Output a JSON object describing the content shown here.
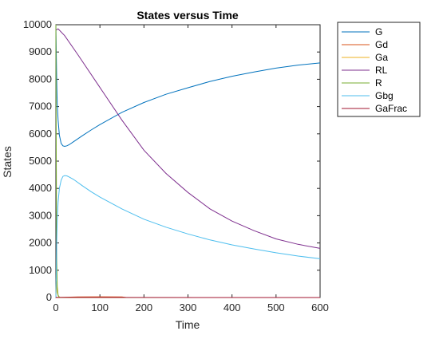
{
  "chart_data": {
    "type": "line",
    "title": "States versus Time",
    "xlabel": "Time",
    "ylabel": "States",
    "xlim": [
      0,
      600
    ],
    "ylim": [
      0,
      10000
    ],
    "xticks": [
      0,
      100,
      200,
      300,
      400,
      500,
      600
    ],
    "yticks": [
      0,
      1000,
      2000,
      3000,
      4000,
      5000,
      6000,
      7000,
      8000,
      9000,
      10000
    ],
    "grid": false,
    "legend_position": "outside-top-right",
    "series": [
      {
        "name": "G",
        "color": "#0072BD",
        "x": [
          0,
          1,
          2,
          3,
          5,
          8,
          12,
          16,
          20,
          25,
          30,
          40,
          60,
          80,
          100,
          150,
          200,
          250,
          300,
          350,
          400,
          450,
          500,
          550,
          600
        ],
        "y": [
          10000,
          8800,
          7800,
          7100,
          6500,
          5950,
          5650,
          5560,
          5540,
          5560,
          5600,
          5710,
          5930,
          6140,
          6340,
          6790,
          7150,
          7450,
          7690,
          7920,
          8110,
          8270,
          8410,
          8520,
          8600
        ]
      },
      {
        "name": "Gd",
        "color": "#D95319",
        "x": [
          0,
          50,
          100,
          150,
          160
        ],
        "y": [
          0,
          20,
          25,
          20,
          0
        ]
      },
      {
        "name": "Ga",
        "color": "#EDB120",
        "x": [
          0,
          1,
          2,
          3,
          5,
          8,
          10,
          20,
          600
        ],
        "y": [
          0,
          600,
          400,
          200,
          80,
          20,
          0,
          0,
          0
        ]
      },
      {
        "name": "RL",
        "color": "#7E2F8E",
        "x": [
          0,
          5,
          20,
          50,
          100,
          150,
          200,
          250,
          300,
          350,
          400,
          450,
          500,
          550,
          600
        ],
        "y": [
          9800,
          9850,
          9600,
          8900,
          7700,
          6500,
          5400,
          4550,
          3850,
          3250,
          2800,
          2450,
          2150,
          1950,
          1800
        ]
      },
      {
        "name": "R",
        "color": "#77AC30",
        "x": [
          0,
          0.5,
          1,
          1.5,
          2,
          3,
          5,
          8,
          600
        ],
        "y": [
          10000,
          7000,
          4500,
          2500,
          1300,
          400,
          80,
          0,
          0
        ]
      },
      {
        "name": "Gbg",
        "color": "#4DBEEE",
        "x": [
          0,
          1,
          2,
          3,
          5,
          8,
          12,
          16,
          20,
          25,
          30,
          40,
          60,
          80,
          100,
          150,
          200,
          250,
          300,
          350,
          400,
          450,
          500,
          550,
          600
        ],
        "y": [
          0,
          1100,
          2100,
          2850,
          3500,
          4000,
          4300,
          4440,
          4470,
          4460,
          4420,
          4330,
          4100,
          3880,
          3680,
          3250,
          2870,
          2580,
          2330,
          2110,
          1930,
          1780,
          1640,
          1520,
          1420
        ]
      },
      {
        "name": "GaFrac",
        "color": "#A2142F",
        "x": [
          0,
          1,
          2,
          5,
          600
        ],
        "y": [
          0,
          8,
          5,
          2,
          0
        ]
      }
    ]
  }
}
